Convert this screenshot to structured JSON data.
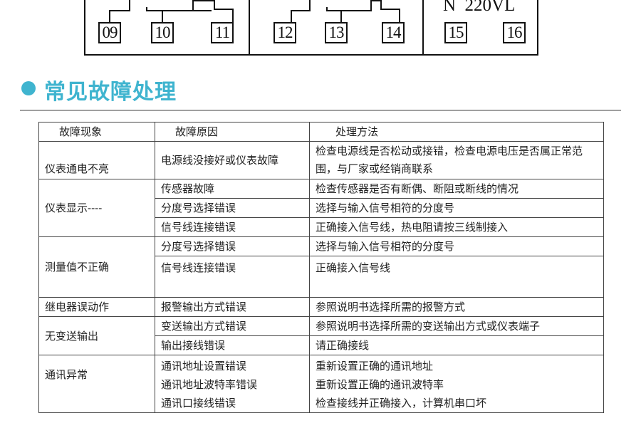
{
  "diagram": {
    "terminals": [
      "09",
      "10",
      "11",
      "12",
      "13",
      "14",
      "15",
      "16"
    ],
    "power_label": "N  220VL"
  },
  "section": {
    "title": "常见故障处理",
    "accent_color": "#3fb4cf"
  },
  "table": {
    "headers": [
      "故障现象",
      "故障原因",
      "处理方法"
    ],
    "groups": [
      {
        "symptom": "仪表通电不亮",
        "rows": [
          {
            "cause": "电源线没接好或仪表故障",
            "fix": "检查电源线是否松动或接错，检查电源电压是否属正常范围，与厂家或经销商联系"
          }
        ]
      },
      {
        "symptom": "仪表显示----",
        "rows": [
          {
            "cause": "传感器故障",
            "fix": "检查传感器是否有断偶、断阻或断线的情况"
          },
          {
            "cause": "分度号选择错误",
            "fix": "选择与输入信号相符的分度号"
          },
          {
            "cause": "信号线连接错误",
            "fix": "正确接入信号线，热电阻请按三线制接入"
          }
        ]
      },
      {
        "symptom": "测量值不正确",
        "rows": [
          {
            "cause": "分度号选择错误",
            "fix": "选择与输入信号相符的分度号"
          },
          {
            "cause": "信号线连接错误",
            "fix": "正确接入信号线"
          }
        ]
      },
      {
        "symptom": "继电器误动作",
        "rows": [
          {
            "cause": "报警输出方式错误",
            "fix": "参照说明书选择所需的报警方式"
          }
        ]
      },
      {
        "symptom": "无变送输出",
        "rows": [
          {
            "cause": "变送输出方式错误",
            "fix": "参照说明书选择所需的变送输出方式或仪表端子"
          },
          {
            "cause": "输出接线错误",
            "fix": "请正确接线"
          }
        ]
      },
      {
        "symptom": "通讯异常",
        "causes": [
          "通讯地址设置错误",
          "通讯地址波特率错误",
          "通讯口接线错误"
        ],
        "fixes": [
          "重新设置正确的通讯地址",
          "重新设置正确的通讯波特率",
          "检查接线并正确接入，计算机串口坏"
        ]
      }
    ]
  }
}
